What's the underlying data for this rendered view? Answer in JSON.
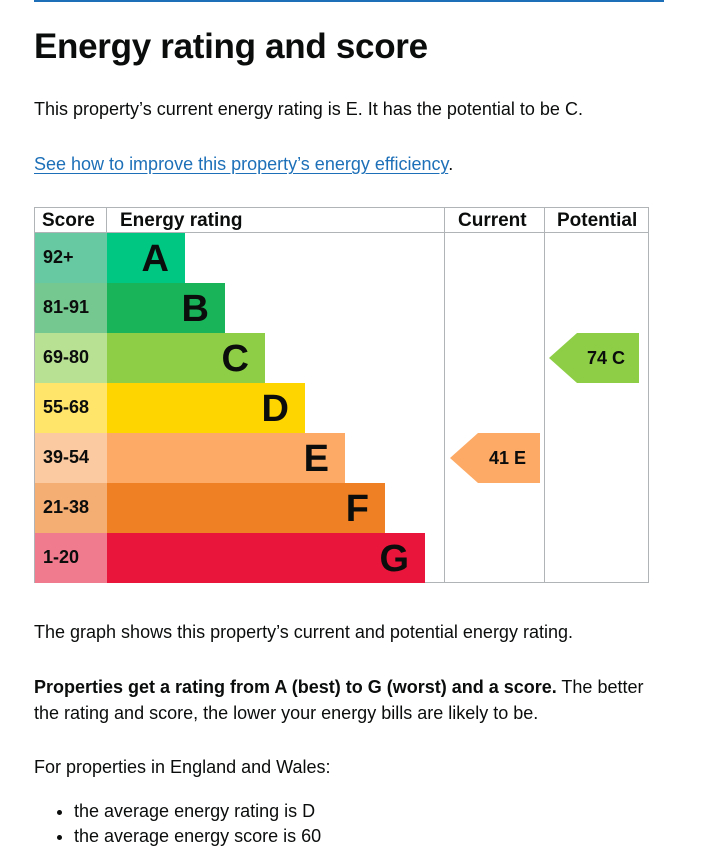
{
  "heading": "Energy rating and score",
  "intro": "This property’s current energy rating is E. It has the potential to be C.",
  "improve_link": "See how to improve this property’s energy efficiency",
  "improve_link_suffix": ".",
  "table": {
    "headers": {
      "score": "Score",
      "rating": "Energy rating",
      "current": "Current",
      "potential": "Potential"
    },
    "bands": [
      {
        "score": "92+",
        "letter": "A",
        "bar_color": "#00c781",
        "score_color": "#67c9a2"
      },
      {
        "score": "81-91",
        "letter": "B",
        "bar_color": "#19b459",
        "score_color": "#75c88f"
      },
      {
        "score": "69-80",
        "letter": "C",
        "bar_color": "#8dce46",
        "score_color": "#b9e193"
      },
      {
        "score": "55-68",
        "letter": "D",
        "bar_color": "#ffd500",
        "score_color": "#ffe66a"
      },
      {
        "score": "39-54",
        "letter": "E",
        "bar_color": "#fcaa65",
        "score_color": "#fccaa0"
      },
      {
        "score": "21-38",
        "letter": "F",
        "bar_color": "#ef8023",
        "score_color": "#f4ad73"
      },
      {
        "score": "1-20",
        "letter": "G",
        "bar_color": "#e9153b",
        "score_color": "#f07a8e"
      }
    ],
    "current": {
      "label": "41  E",
      "score": 41,
      "band": "E",
      "color": "#fcaa65"
    },
    "potential": {
      "label": "74  C",
      "score": 74,
      "band": "C",
      "color": "#8dce46"
    }
  },
  "graph_note": "The graph shows this property’s current and potential energy rating.",
  "rating_bold": "Properties get a rating from A (best) to G (worst) and a score.",
  "rating_rest": " The better the rating and score, the lower your energy bills are likely to be.",
  "region_intro": "For properties in England and Wales:",
  "averages": [
    "the average energy rating is D",
    "the average energy score is 60"
  ]
}
